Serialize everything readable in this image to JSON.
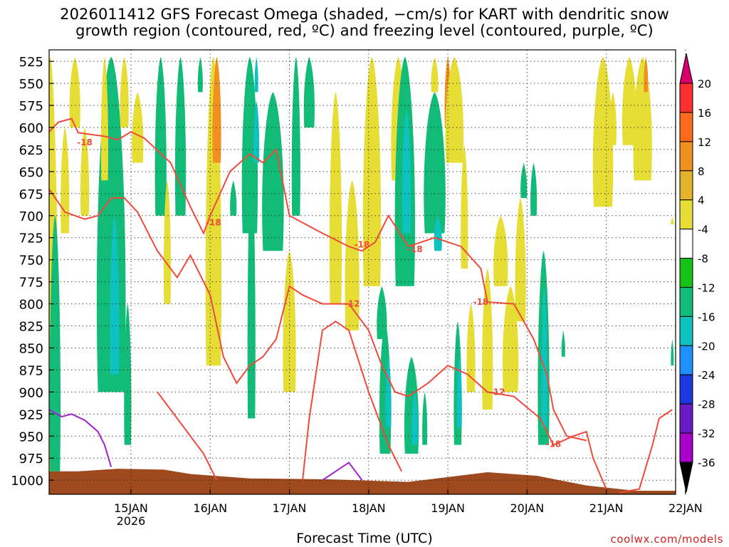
{
  "title_line1": "2026011412 GFS Forecast Omega (shaded, −cm/s) for KART with dendritic snow",
  "title_line2": "growth region (contoured, red, ºC) and freezing level (contoured, purple, ºC)",
  "xlabel": "Forecast Time (UTC)",
  "credit": "coolwx.com/models",
  "chart_data": {
    "type": "heatmap",
    "title": "2026011412 GFS Forecast Omega (shaded, −cm/s) for KART with dendritic snow growth region (contoured, red, ºC) and freezing level (contoured, purple, ºC)",
    "xlabel": "Forecast Time (UTC)",
    "ylabel": "",
    "x_ticks": [
      "15JAN",
      "16JAN",
      "17JAN",
      "18JAN",
      "19JAN",
      "20JAN",
      "21JAN",
      "22JAN"
    ],
    "x_sub_label": "2026",
    "xlim_hours": [
      -12.8,
      177
    ],
    "y_ticks": [
      525,
      550,
      575,
      600,
      625,
      650,
      675,
      700,
      725,
      750,
      775,
      800,
      825,
      850,
      875,
      900,
      925,
      950,
      975,
      1000
    ],
    "ylim": [
      1016,
      512
    ],
    "y_axis": "pressure (hPa), inverted",
    "grid": true,
    "colorbar": {
      "ticks": [
        20,
        16,
        12,
        8,
        4,
        -4,
        -8,
        -12,
        -16,
        -20,
        -24,
        -28,
        -32,
        -36
      ],
      "colors": [
        "#ff2f2f",
        "#ff6a1a",
        "#f09020",
        "#e2b22a",
        "#e6de34",
        "#ffffff",
        "#16c216",
        "#12bc78",
        "#0ec2c2",
        "#1e90ff",
        "#1c38e0",
        "#6a1ac4",
        "#a800c8",
        "#a0a0a0"
      ],
      "top_color": "#d8006c",
      "bottom_color": "#000000"
    },
    "contour_labels": [
      {
        "value": -18,
        "t": -2,
        "p": 617
      },
      {
        "value": -18,
        "t": 37,
        "p": 708
      },
      {
        "value": -18,
        "t": 82,
        "p": 733
      },
      {
        "value": -18,
        "t": 98,
        "p": 738
      },
      {
        "value": -12,
        "t": 79,
        "p": 800
      },
      {
        "value": -18,
        "t": 118,
        "p": 798
      },
      {
        "value": -12,
        "t": 123,
        "p": 900
      },
      {
        "value": -18,
        "t": 140,
        "p": 959
      }
    ],
    "surface_pressure_approx": [
      [
        -12.8,
        990
      ],
      [
        -4,
        990
      ],
      [
        8,
        987
      ],
      [
        22,
        988
      ],
      [
        30,
        993
      ],
      [
        48,
        998
      ],
      [
        72,
        999
      ],
      [
        96,
        1002
      ],
      [
        120,
        991
      ],
      [
        135,
        995
      ],
      [
        150,
        1006
      ],
      [
        165,
        1012
      ],
      [
        177,
        1012
      ]
    ]
  }
}
